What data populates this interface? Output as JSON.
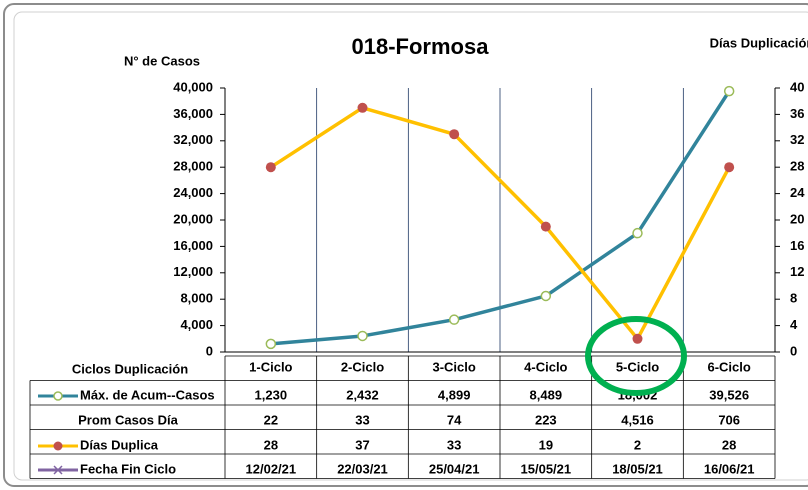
{
  "chart_data": {
    "type": "line",
    "title": "018-Formosa",
    "y_axis_label": "N° de Casos",
    "y2_axis_label": "Días Duplicación",
    "table_header": "Ciclos Duplicación",
    "categories": [
      "1-Ciclo",
      "2-Ciclo",
      "3-Ciclo",
      "4-Ciclo",
      "5-Ciclo",
      "6-Ciclo"
    ],
    "ylim": [
      0,
      40000
    ],
    "yticks": [
      {
        "value": 0,
        "label": "0"
      },
      {
        "value": 4000,
        "label": "4,000"
      },
      {
        "value": 8000,
        "label": "8,000"
      },
      {
        "value": 12000,
        "label": "12,000"
      },
      {
        "value": 16000,
        "label": "16,000"
      },
      {
        "value": 20000,
        "label": "20,000"
      },
      {
        "value": 24000,
        "label": "24,000"
      },
      {
        "value": 28000,
        "label": "28,000"
      },
      {
        "value": 32000,
        "label": "32,000"
      },
      {
        "value": 36000,
        "label": "36,000"
      },
      {
        "value": 40000,
        "label": "40,000"
      }
    ],
    "y2lim": [
      0,
      40
    ],
    "y2ticks": [
      0,
      4,
      8,
      12,
      16,
      20,
      24,
      28,
      32,
      36,
      40
    ],
    "series": [
      {
        "name": "Máx. de Acum--Casos",
        "color": "#31849b",
        "axis": "y",
        "values": [
          1230,
          2432,
          4899,
          8489,
          18002,
          39526
        ],
        "value_labels": [
          "1,230",
          "2,432",
          "4,899",
          "8,489",
          "18,002",
          "39,526"
        ]
      },
      {
        "name": "Días Duplica",
        "color": "#ffc000",
        "axis": "y2",
        "values": [
          28,
          37,
          33,
          19,
          2,
          28
        ]
      }
    ],
    "table_rows": [
      {
        "name": "Prom Casos Día",
        "values": [
          22,
          33,
          74,
          223,
          4516,
          706
        ],
        "value_labels": [
          "22",
          "33",
          "74",
          "223",
          "4,516",
          "706"
        ]
      },
      {
        "name": "Fecha Fin Ciclo",
        "values": [
          "12/02/21",
          "22/03/21",
          "25/04/21",
          "15/05/21",
          "18/05/21",
          "16/06/21"
        ]
      }
    ]
  }
}
